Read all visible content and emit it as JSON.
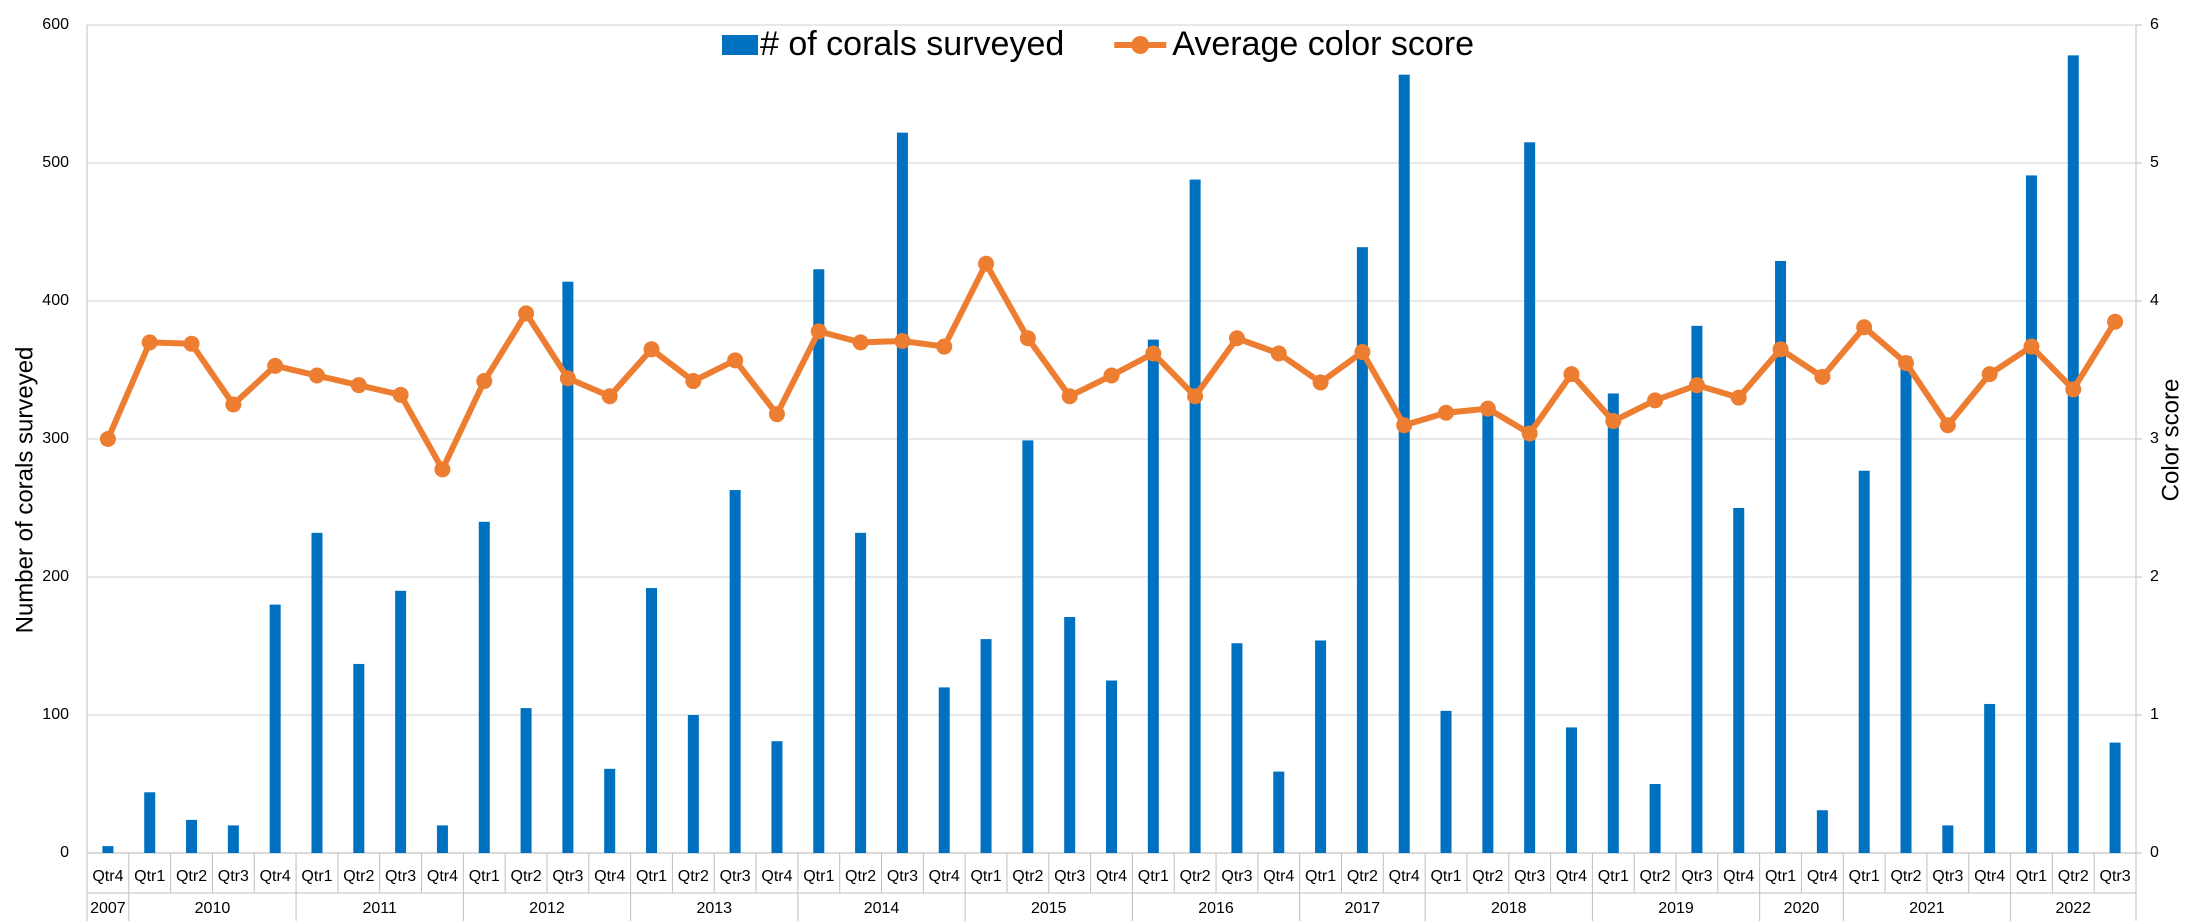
{
  "chart_data": {
    "type": "bar-line",
    "groups": [
      {
        "label": "2007",
        "quarters": [
          "Qtr4"
        ]
      },
      {
        "label": "2010",
        "quarters": [
          "Qtr1",
          "Qtr2",
          "Qtr3",
          "Qtr4"
        ]
      },
      {
        "label": "2011",
        "quarters": [
          "Qtr1",
          "Qtr2",
          "Qtr3",
          "Qtr4"
        ]
      },
      {
        "label": "2012",
        "quarters": [
          "Qtr1",
          "Qtr2",
          "Qtr3",
          "Qtr4"
        ]
      },
      {
        "label": "2013",
        "quarters": [
          "Qtr1",
          "Qtr2",
          "Qtr3",
          "Qtr4"
        ]
      },
      {
        "label": "2014",
        "quarters": [
          "Qtr1",
          "Qtr2",
          "Qtr3",
          "Qtr4"
        ]
      },
      {
        "label": "2015",
        "quarters": [
          "Qtr1",
          "Qtr2",
          "Qtr3",
          "Qtr4"
        ]
      },
      {
        "label": "2016",
        "quarters": [
          "Qtr1",
          "Qtr2",
          "Qtr3",
          "Qtr4"
        ]
      },
      {
        "label": "2017",
        "quarters": [
          "Qtr1",
          "Qtr2",
          "Qtr4"
        ]
      },
      {
        "label": "2018",
        "quarters": [
          "Qtr1",
          "Qtr2",
          "Qtr3",
          "Qtr4"
        ]
      },
      {
        "label": "2019",
        "quarters": [
          "Qtr1",
          "Qtr2",
          "Qtr3",
          "Qtr4"
        ]
      },
      {
        "label": "2020",
        "quarters": [
          "Qtr1",
          "Qtr4"
        ]
      },
      {
        "label": "2021",
        "quarters": [
          "Qtr1",
          "Qtr2",
          "Qtr3",
          "Qtr4"
        ]
      },
      {
        "label": "2022",
        "quarters": [
          "Qtr1",
          "Qtr2",
          "Qtr3"
        ]
      }
    ],
    "series": [
      {
        "name": "# of corals surveyed",
        "type": "bar",
        "color": "#0070c0",
        "values": [
          5,
          44,
          24,
          20,
          180,
          232,
          137,
          190,
          20,
          240,
          105,
          414,
          61,
          192,
          100,
          263,
          81,
          423,
          232,
          522,
          120,
          155,
          299,
          171,
          125,
          372,
          488,
          152,
          59,
          154,
          439,
          564,
          103,
          325,
          515,
          91,
          333,
          50,
          382,
          250,
          429,
          31,
          277,
          360,
          20,
          108,
          491,
          578,
          80
        ]
      },
      {
        "name": "Average color score",
        "type": "line",
        "axis": "y2",
        "color": "#ed7d31",
        "values": [
          3.0,
          3.7,
          3.69,
          3.25,
          3.53,
          3.46,
          3.39,
          3.32,
          2.78,
          3.42,
          3.91,
          3.44,
          3.31,
          3.65,
          3.42,
          3.57,
          3.18,
          3.78,
          3.7,
          3.71,
          3.67,
          4.27,
          3.73,
          3.31,
          3.46,
          3.62,
          3.31,
          3.73,
          3.62,
          3.41,
          3.63,
          3.1,
          3.19,
          3.22,
          3.04,
          3.47,
          3.13,
          3.28,
          3.39,
          3.3,
          3.65,
          3.45,
          3.81,
          3.55,
          3.1,
          3.47,
          3.67,
          3.36,
          3.85
        ]
      }
    ],
    "ylabel": "Number of corals surveyed",
    "y2label": "Color score",
    "ylim": [
      0,
      600
    ],
    "yticks": [
      0,
      100,
      200,
      300,
      400,
      500,
      600
    ],
    "y2lim": [
      0,
      6
    ],
    "y2ticks": [
      0,
      1,
      2,
      3,
      4,
      5,
      6
    ],
    "grid": true,
    "legend": "top"
  }
}
